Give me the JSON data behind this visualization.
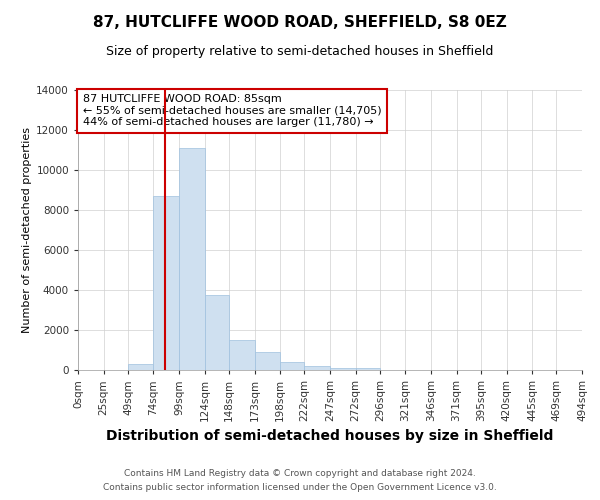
{
  "title_line1": "87, HUTCLIFFE WOOD ROAD, SHEFFIELD, S8 0EZ",
  "title_line2": "Size of property relative to semi-detached houses in Sheffield",
  "xlabel": "Distribution of semi-detached houses by size in Sheffield",
  "ylabel": "Number of semi-detached properties",
  "footnote1": "Contains HM Land Registry data © Crown copyright and database right 2024.",
  "footnote2": "Contains public sector information licensed under the Open Government Licence v3.0.",
  "annotation_line1": "87 HUTCLIFFE WOOD ROAD: 85sqm",
  "annotation_line2": "← 55% of semi-detached houses are smaller (14,705)",
  "annotation_line3": "44% of semi-detached houses are larger (11,780) →",
  "bar_edges": [
    0,
    25,
    49,
    74,
    99,
    124,
    148,
    173,
    198,
    222,
    247,
    272,
    296,
    321,
    346,
    371,
    395,
    420,
    445,
    469,
    494
  ],
  "bar_heights": [
    0,
    0,
    300,
    8700,
    11100,
    3750,
    1500,
    900,
    400,
    200,
    100,
    100,
    0,
    0,
    0,
    0,
    0,
    0,
    0,
    0
  ],
  "bar_color": "#cfe0f0",
  "bar_edgecolor": "#9fc0de",
  "property_size": 85,
  "vline_color": "#cc0000",
  "ylim": [
    0,
    14000
  ],
  "yticks": [
    0,
    2000,
    4000,
    6000,
    8000,
    10000,
    12000,
    14000
  ],
  "bg_color": "#ffffff",
  "grid_color": "#d0d0d0",
  "box_color": "#cc0000",
  "title1_fontsize": 11,
  "title2_fontsize": 9,
  "xlabel_fontsize": 10,
  "ylabel_fontsize": 8,
  "annotation_fontsize": 8,
  "tick_fontsize": 7.5,
  "footnote_fontsize": 6.5
}
